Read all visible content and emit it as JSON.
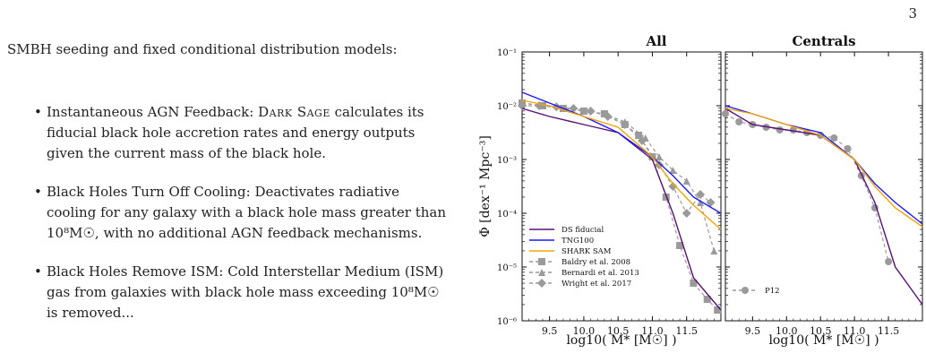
{
  "page_number": "3",
  "text": {
    "intro": "SMBH seeding and fixed conditional distribution models:",
    "bullets": [
      {
        "sc": "Dark Sage",
        "a": "Instantaneous AGN Feedback: ",
        "b": " calculates its fiducial black hole accretion rates and energy outputs given the current mass of the black hole."
      },
      {
        "text": "Black Holes Turn Off Cooling: Deactivates radiative cooling for any galaxy with a black hole mass greater than 10⁸M☉, with no additional AGN feedback mechanisms."
      },
      {
        "text": "Black Holes Remove ISM: Cold Interstellar Medium (ISM) gas from galaxies with black hole mass exceeding 10⁸M☉ is removed..."
      }
    ]
  },
  "chart_data": [
    {
      "type": "line",
      "title": "All",
      "xlabel": "log10( M* [M☉] )",
      "ylabel": "Φ [dex⁻¹ Mpc⁻³]",
      "xlim": [
        9.1,
        12.0
      ],
      "ylim_log10": [
        -6,
        -1
      ],
      "y_scale": "log",
      "x_ticks": [
        "9.5",
        "10.0",
        "10.5",
        "11.0",
        "11.5"
      ],
      "y_ticks": [
        "10⁻¹",
        "10⁻²",
        "10⁻³",
        "10⁻⁴",
        "10⁻⁵",
        "10⁻⁶"
      ],
      "legend_position": "lower-left",
      "series": [
        {
          "name": "DS fiducial",
          "color": "#5b0f7a",
          "style": "solid",
          "x": [
            9.1,
            9.5,
            10.0,
            10.5,
            11.0,
            11.3,
            11.6,
            12.0
          ],
          "log_y": [
            -2.05,
            -2.2,
            -2.35,
            -2.5,
            -3.0,
            -4.0,
            -5.2,
            -5.8
          ]
        },
        {
          "name": "TNG100",
          "color": "#1a1aff",
          "style": "solid",
          "x": [
            9.1,
            9.5,
            10.0,
            10.5,
            11.0,
            11.3,
            11.6,
            12.0
          ],
          "log_y": [
            -1.75,
            -1.95,
            -2.2,
            -2.5,
            -2.95,
            -3.3,
            -3.7,
            -4.0
          ]
        },
        {
          "name": "SHARK SAM",
          "color": "#f5a300",
          "style": "solid",
          "x": [
            9.1,
            9.5,
            10.0,
            10.5,
            11.0,
            11.3,
            11.6,
            12.0
          ],
          "log_y": [
            -1.9,
            -2.0,
            -2.2,
            -2.4,
            -2.95,
            -3.45,
            -3.85,
            -4.3
          ]
        },
        {
          "name": "Baldry et al. 2008",
          "color": "#9a9a9a",
          "style": "dashed",
          "marker": "square",
          "x": [
            9.1,
            9.4,
            9.7,
            10.0,
            10.3,
            10.6,
            10.8,
            11.0,
            11.2,
            11.4,
            11.6,
            11.8,
            11.95
          ],
          "log_y": [
            -1.95,
            -2.0,
            -2.05,
            -2.1,
            -2.15,
            -2.35,
            -2.55,
            -2.95,
            -3.7,
            -4.6,
            -5.3,
            -5.6,
            -5.8
          ]
        },
        {
          "name": "Bernardi et al. 2013",
          "color": "#9a9a9a",
          "style": "dashed",
          "marker": "triangle",
          "x": [
            9.1,
            9.4,
            9.7,
            10.0,
            10.3,
            10.6,
            10.9,
            11.1,
            11.3,
            11.5,
            11.7,
            11.9
          ],
          "log_y": [
            -1.95,
            -2.0,
            -2.05,
            -2.1,
            -2.15,
            -2.3,
            -2.6,
            -2.95,
            -3.2,
            -3.4,
            -3.8,
            -4.7
          ]
        },
        {
          "name": "Wright et al. 2017",
          "color": "#9a9a9a",
          "style": "dashed",
          "marker": "diamond",
          "x": [
            9.1,
            9.35,
            9.6,
            9.85,
            10.1,
            10.35,
            10.6,
            10.85,
            11.1,
            11.3,
            11.5,
            11.7,
            11.85
          ],
          "log_y": [
            -2.0,
            -2.0,
            -2.02,
            -2.05,
            -2.1,
            -2.2,
            -2.35,
            -2.65,
            -3.1,
            -3.5,
            -4.0,
            -3.65,
            -3.8
          ]
        }
      ]
    },
    {
      "type": "line",
      "title": "Centrals",
      "xlabel": "log10( M* [M☉] )",
      "xlim": [
        9.1,
        12.0
      ],
      "ylim_log10": [
        -6,
        -1
      ],
      "y_scale": "log",
      "x_ticks": [
        "9.5",
        "10.0",
        "10.5",
        "11.0",
        "11.5"
      ],
      "legend_position": "lower-left",
      "series": [
        {
          "name": "DS fiducial",
          "color": "#5b0f7a",
          "style": "solid",
          "x": [
            9.1,
            9.5,
            10.0,
            10.5,
            11.0,
            11.3,
            11.6,
            12.0
          ],
          "log_y": [
            -2.05,
            -2.35,
            -2.45,
            -2.55,
            -3.0,
            -3.8,
            -5.0,
            -5.7
          ]
        },
        {
          "name": "TNG100",
          "color": "#1a1aff",
          "style": "solid",
          "x": [
            9.1,
            9.5,
            10.0,
            10.5,
            11.0,
            11.3,
            11.6,
            12.0
          ],
          "log_y": [
            -2.0,
            -2.15,
            -2.35,
            -2.5,
            -3.0,
            -3.45,
            -3.8,
            -4.2
          ]
        },
        {
          "name": "SHARK SAM",
          "color": "#f5a300",
          "style": "solid",
          "x": [
            9.1,
            9.5,
            10.0,
            10.5,
            11.0,
            11.3,
            11.6,
            12.0
          ],
          "log_y": [
            -2.05,
            -2.15,
            -2.35,
            -2.55,
            -3.0,
            -3.5,
            -3.9,
            -4.25
          ]
        },
        {
          "name": "P12",
          "color": "#9a9a9a",
          "style": "dashed",
          "marker": "circle",
          "x": [
            9.1,
            9.3,
            9.5,
            9.7,
            9.9,
            10.1,
            10.3,
            10.5,
            10.7,
            10.9,
            11.1,
            11.3,
            11.5
          ],
          "log_y": [
            -2.15,
            -2.3,
            -2.35,
            -2.4,
            -2.45,
            -2.45,
            -2.5,
            -2.55,
            -2.6,
            -2.8,
            -3.3,
            -3.9,
            -4.9
          ]
        }
      ]
    }
  ]
}
